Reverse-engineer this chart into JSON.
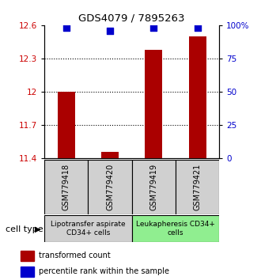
{
  "title": "GDS4079 / 7895263",
  "samples": [
    "GSM779418",
    "GSM779420",
    "GSM779419",
    "GSM779421"
  ],
  "red_values": [
    12.0,
    11.46,
    12.38,
    12.5
  ],
  "blue_values": [
    98,
    96,
    98,
    98
  ],
  "ylim_left": [
    11.4,
    12.6
  ],
  "ylim_right": [
    0,
    100
  ],
  "yticks_left": [
    11.4,
    11.7,
    12.0,
    12.3,
    12.6
  ],
  "yticks_right": [
    0,
    25,
    50,
    75,
    100
  ],
  "ytick_labels_left": [
    "11.4",
    "11.7",
    "12",
    "12.3",
    "12.6"
  ],
  "ytick_labels_right": [
    "0",
    "25",
    "50",
    "75",
    "100%"
  ],
  "grid_lines": [
    11.7,
    12.0,
    12.3
  ],
  "cell_groups": [
    {
      "label": "Lipotransfer aspirate\nCD34+ cells",
      "start": 0,
      "end": 2,
      "color": "#d0d0d0"
    },
    {
      "label": "Leukapheresis CD34+\ncells",
      "start": 2,
      "end": 4,
      "color": "#90ee90"
    }
  ],
  "bar_color": "#aa0000",
  "dot_color": "#0000cc",
  "bar_width": 0.4,
  "dot_size": 40,
  "left_color": "#cc0000",
  "right_color": "#0000cc",
  "cell_type_label": "cell type",
  "legend_red": "transformed count",
  "legend_blue": "percentile rank within the sample"
}
